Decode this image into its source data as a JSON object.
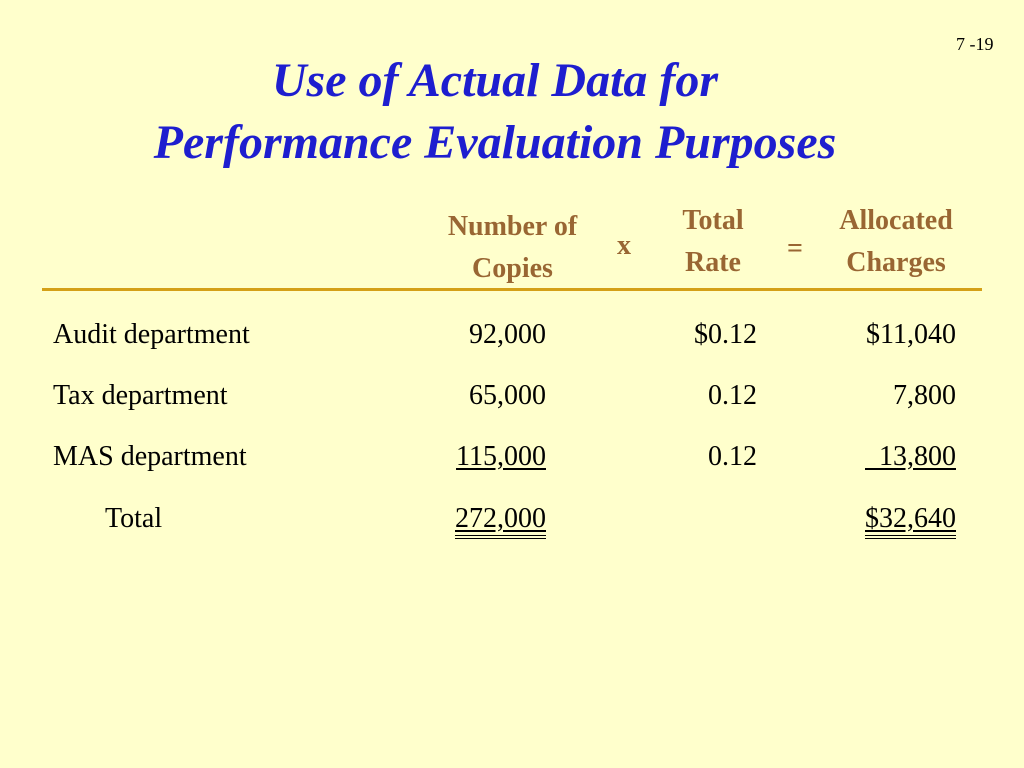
{
  "slide_number": "7 -19",
  "title": {
    "line1": "Use of Actual Data for",
    "line2": "Performance Evaluation Purposes"
  },
  "headers": {
    "copies": [
      "Number of",
      "Copies"
    ],
    "times": "x",
    "rate": [
      "Total",
      "Rate"
    ],
    "equals": "=",
    "charges": [
      "Allocated",
      "Charges"
    ]
  },
  "rows": [
    {
      "label": "Audit department",
      "copies": "92,000",
      "rate": "$0.12",
      "charges": "$11,040"
    },
    {
      "label": "Tax department",
      "copies": "65,000",
      "rate": "0.12",
      "charges": "7,800"
    },
    {
      "label": "MAS department",
      "copies": "115,000",
      "rate": "0.12",
      "charges": "  13,800"
    },
    {
      "label": "Total",
      "copies": "272,000",
      "rate": "",
      "charges": "$32,640"
    }
  ]
}
